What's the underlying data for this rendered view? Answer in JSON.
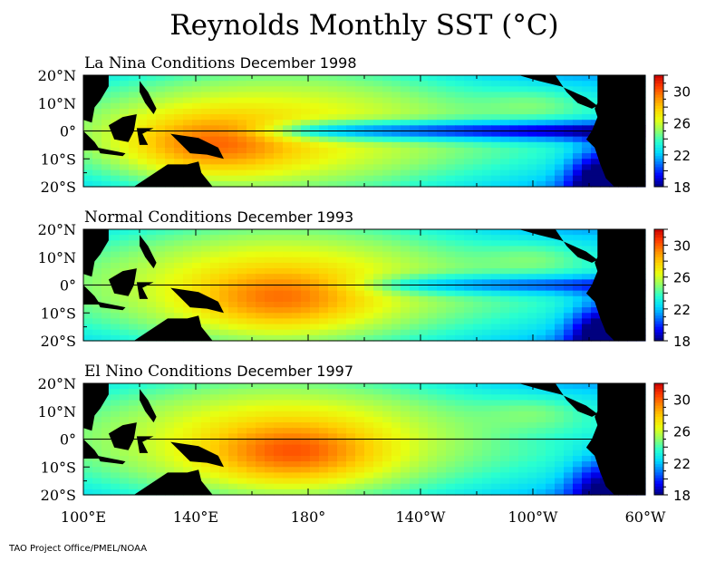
{
  "chart_data": {
    "type": "heatmap",
    "title": "Reynolds Monthly SST  (°C)",
    "credit": "TAO Project Office/PMEL/NOAA",
    "x_axis": {
      "ticks": [
        "100°E",
        "140°E",
        "180°",
        "140°W",
        "100°W",
        "60°W"
      ],
      "range_deg_east": [
        100,
        300
      ]
    },
    "y_axis": {
      "ticks": [
        "20°N",
        "10°N",
        "0°",
        "10°S",
        "20°S"
      ],
      "range_lat": [
        -20,
        20
      ]
    },
    "colorbar": {
      "ticks": [
        "30",
        "26",
        "22",
        "18"
      ],
      "range": [
        18,
        32
      ],
      "colors": [
        "#00007f",
        "#0000ff",
        "#0070ff",
        "#00d8ff",
        "#28ffd0",
        "#90ff68",
        "#e8ff10",
        "#ffd000",
        "#ff8c00",
        "#ff3a00",
        "#c80000"
      ]
    },
    "land_color": "#000000",
    "panels": [
      {
        "label": "La Nina Conditions",
        "period": "December 1998",
        "warm_pool_center": 145,
        "warm_pool_max": 30.5,
        "cold_tongue_min": 22.5,
        "cold_tongue_west_edge": 170,
        "coast_min": 19
      },
      {
        "label": "Normal Conditions",
        "period": "December 1993",
        "warm_pool_center": 170,
        "warm_pool_max": 30,
        "cold_tongue_min": 24.5,
        "cold_tongue_west_edge": 205,
        "coast_min": 19.5
      },
      {
        "label": "El Nino Conditions",
        "period": "December 1997",
        "warm_pool_center": 175,
        "warm_pool_max": 30.5,
        "cold_tongue_min": 28.2,
        "cold_tongue_west_edge": 250,
        "coast_min": 21
      }
    ]
  }
}
